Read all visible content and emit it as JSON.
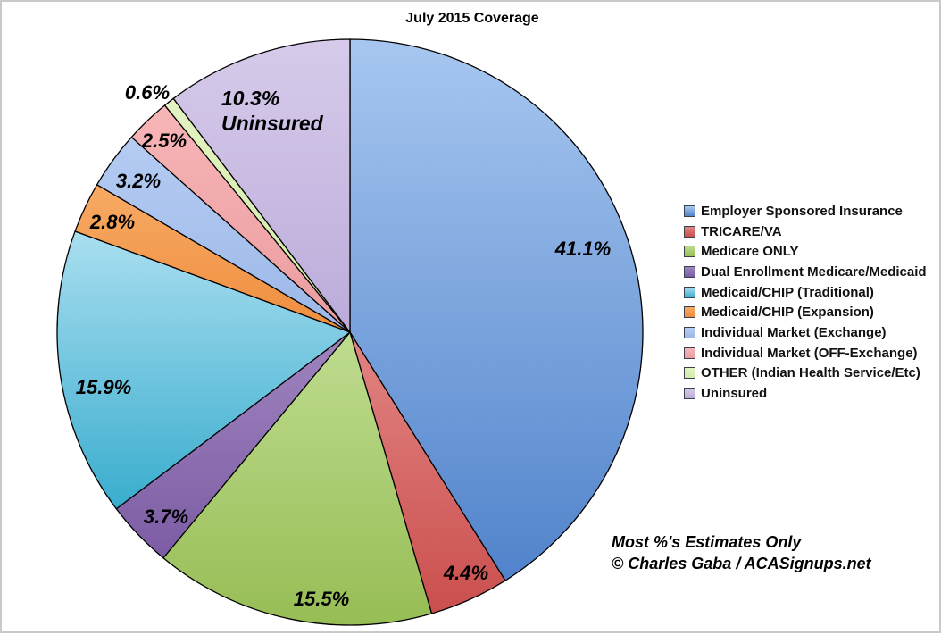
{
  "page": {
    "background": "#ffffff",
    "border_color": "#c9c9c9"
  },
  "chart_data": {
    "type": "pie",
    "title": "July 2015 Coverage",
    "direction": "clockwise",
    "start_angle_deg": 0,
    "legend_position": "right",
    "slices": [
      {
        "label": "Employer Sponsored Insurance",
        "value": 41.1,
        "pct_label": "41.1%",
        "color": "#7aa1d9",
        "color_light": "#a7c7f0",
        "color_dark": "#5183cb"
      },
      {
        "label": "TRICARE/VA",
        "value": 4.4,
        "pct_label": "4.4%",
        "color": "#d3615f",
        "color_light": "#e28583",
        "color_dark": "#ca4f4e"
      },
      {
        "label": "Medicare ONLY",
        "value": 15.5,
        "pct_label": "15.5%",
        "color": "#a8cc6c",
        "color_light": "#bfdc90",
        "color_dark": "#97bd55"
      },
      {
        "label": "Dual Enrollment Medicare/Medicaid",
        "value": 3.7,
        "pct_label": "3.7%",
        "color": "#8e71b3",
        "color_light": "#9f85bf",
        "color_dark": "#7c5ca4"
      },
      {
        "label": "Medicaid/CHIP (Traditional)",
        "value": 15.9,
        "pct_label": "15.9%",
        "color": "#62c1dc",
        "color_light": "#aadef0",
        "color_dark": "#39adce"
      },
      {
        "label": "Medicaid/CHIP (Expansion)",
        "value": 2.8,
        "pct_label": "2.8%",
        "color": "#f49b52",
        "color_light": "#f8aa64",
        "color_dark": "#ee8d3e"
      },
      {
        "label": "Individual Market (Exchange)",
        "value": 3.2,
        "pct_label": "3.2%",
        "color": "#a9c3ee",
        "color_light": "#b5ccf3",
        "color_dark": "#9cb8e8"
      },
      {
        "label": "Individual Market (OFF-Exchange)",
        "value": 2.5,
        "pct_label": "2.5%",
        "color": "#f1a6a9",
        "color_light": "#f7b5b7",
        "color_dark": "#eb9c9f"
      },
      {
        "label": "OTHER (Indian Health Service/Etc)",
        "value": 0.6,
        "pct_label": "0.6%",
        "color": "#dbefb5",
        "color_light": "#e4f3c2",
        "color_dark": "#d2eaa8"
      },
      {
        "label": "Uninsured",
        "value": 10.3,
        "pct_label": "10.3%",
        "color": "#ccbfe3",
        "color_light": "#d6cbea",
        "color_dark": "#bcabda",
        "callout": "Uninsured"
      }
    ],
    "annotations": [
      "Most %'s Estimates Only",
      "© Charles Gaba / ACASignups.net"
    ]
  }
}
